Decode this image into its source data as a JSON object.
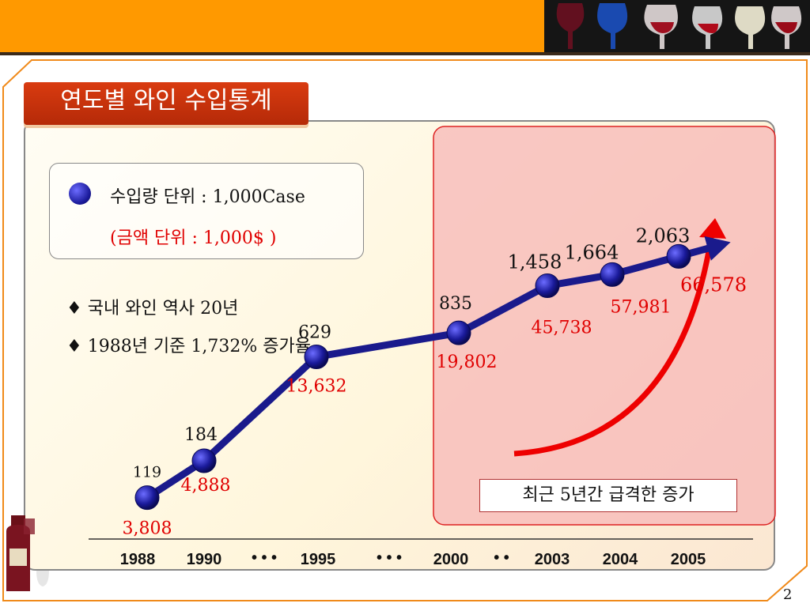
{
  "slide": {
    "title": "연도별 와인 수입통계",
    "page_number": "2",
    "legend": {
      "volume_unit": "수입량 단위 : 1,000Case",
      "amount_unit": "(금액 단위 : 1,000$ )"
    },
    "notes": [
      "♦ 국내 와인 역사 20년",
      "♦ 1988년 기준 1,732% 증가율"
    ],
    "callout": "최근 5년간 급격한 증가",
    "colors": {
      "topbar": "#ff9900",
      "title_bg": "#c8320b",
      "line": "#1a1a8c",
      "amount": "#e00000",
      "highlight": "#f7b7b7"
    }
  },
  "chart_data": {
    "type": "line",
    "title": "연도별 와인 수입통계",
    "categories": [
      "1988",
      "1990",
      "1995",
      "2000",
      "2003",
      "2004",
      "2005"
    ],
    "separators": [
      "• • •",
      "• • •",
      "• •"
    ],
    "series": [
      {
        "name": "수입량 단위 : 1,000Case",
        "values": [
          119,
          184,
          629,
          835,
          1458,
          1664,
          2063
        ],
        "labels": [
          "119",
          "184",
          "629",
          "835",
          "1,458",
          "1,664",
          "2,063"
        ]
      },
      {
        "name": "(금액 단위 : 1,000$ )",
        "values": [
          3808,
          4888,
          13632,
          19802,
          45738,
          57981,
          66578
        ],
        "labels": [
          "3,808",
          "4,888",
          "13,632",
          "19,802",
          "45,738",
          "57,981",
          "66,578"
        ]
      }
    ],
    "highlight_range": [
      "2000",
      "2005"
    ],
    "legend": "top-left",
    "grid": false
  }
}
